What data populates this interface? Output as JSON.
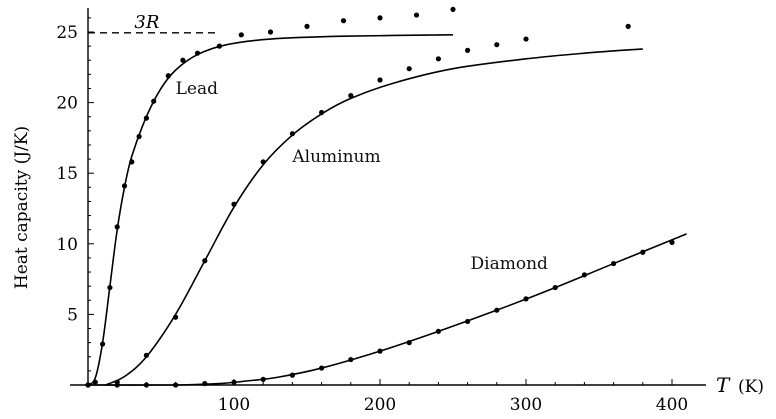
{
  "chart_data": {
    "type": "scatter",
    "title": "",
    "ylabel": "Heat capacity (J/K)",
    "xlabel_symbol": "T",
    "xlabel_unit": "(K)",
    "xlim": [
      -20,
      420
    ],
    "ylim": [
      0,
      27
    ],
    "x_ticks": [
      {
        "value": 100,
        "label": "100"
      },
      {
        "value": 200,
        "label": "200"
      },
      {
        "value": 300,
        "label": "300"
      },
      {
        "value": 400,
        "label": "400"
      }
    ],
    "y_ticks": [
      {
        "value": 5,
        "label": "5"
      },
      {
        "value": 10,
        "label": "10"
      },
      {
        "value": 15,
        "label": "15"
      },
      {
        "value": 20,
        "label": "20"
      },
      {
        "value": 25,
        "label": "25"
      }
    ],
    "reference_line": {
      "label": "3R",
      "y": 24.94,
      "x": [
        -10,
        90
      ]
    },
    "series": [
      {
        "name": "Lead",
        "label_position": {
          "x": 60,
          "y": 20.6
        },
        "curve_x_max": 250,
        "points": [
          {
            "x": 0,
            "y": 0
          },
          {
            "x": 5,
            "y": 0.2
          },
          {
            "x": 10,
            "y": 2.9
          },
          {
            "x": 15,
            "y": 6.9
          },
          {
            "x": 20,
            "y": 11.2
          },
          {
            "x": 25,
            "y": 14.1
          },
          {
            "x": 30,
            "y": 15.8
          },
          {
            "x": 35,
            "y": 17.6
          },
          {
            "x": 40,
            "y": 18.9
          },
          {
            "x": 45,
            "y": 20.1
          },
          {
            "x": 55,
            "y": 21.9
          },
          {
            "x": 65,
            "y": 23.0
          },
          {
            "x": 75,
            "y": 23.5
          },
          {
            "x": 90,
            "y": 24.0
          },
          {
            "x": 105,
            "y": 24.8
          },
          {
            "x": 125,
            "y": 25.0
          },
          {
            "x": 150,
            "y": 25.4
          },
          {
            "x": 175,
            "y": 25.8
          },
          {
            "x": 200,
            "y": 26.0
          },
          {
            "x": 225,
            "y": 26.2
          },
          {
            "x": 250,
            "y": 26.6
          },
          {
            "x": 370,
            "y": 25.4
          }
        ]
      },
      {
        "name": "Aluminum",
        "label_position": {
          "x": 140,
          "y": 15.8
        },
        "curve_x_max": 380,
        "points": [
          {
            "x": 20,
            "y": 0.2
          },
          {
            "x": 40,
            "y": 2.1
          },
          {
            "x": 60,
            "y": 4.8
          },
          {
            "x": 80,
            "y": 8.8
          },
          {
            "x": 100,
            "y": 12.8
          },
          {
            "x": 120,
            "y": 15.8
          },
          {
            "x": 140,
            "y": 17.8
          },
          {
            "x": 160,
            "y": 19.3
          },
          {
            "x": 180,
            "y": 20.5
          },
          {
            "x": 200,
            "y": 21.6
          },
          {
            "x": 220,
            "y": 22.4
          },
          {
            "x": 240,
            "y": 23.1
          },
          {
            "x": 260,
            "y": 23.7
          },
          {
            "x": 280,
            "y": 24.1
          },
          {
            "x": 300,
            "y": 24.5
          }
        ]
      },
      {
        "name": "Diamond",
        "label_position": {
          "x": 262,
          "y": 8.2
        },
        "curve_x_max": 410,
        "points": [
          {
            "x": 0,
            "y": 0
          },
          {
            "x": 20,
            "y": 0
          },
          {
            "x": 40,
            "y": 0
          },
          {
            "x": 60,
            "y": 0
          },
          {
            "x": 80,
            "y": 0.1
          },
          {
            "x": 100,
            "y": 0.2
          },
          {
            "x": 120,
            "y": 0.4
          },
          {
            "x": 140,
            "y": 0.7
          },
          {
            "x": 160,
            "y": 1.2
          },
          {
            "x": 180,
            "y": 1.8
          },
          {
            "x": 200,
            "y": 2.4
          },
          {
            "x": 220,
            "y": 3.0
          },
          {
            "x": 240,
            "y": 3.8
          },
          {
            "x": 260,
            "y": 4.5
          },
          {
            "x": 280,
            "y": 5.3
          },
          {
            "x": 300,
            "y": 6.1
          },
          {
            "x": 320,
            "y": 6.9
          },
          {
            "x": 340,
            "y": 7.8
          },
          {
            "x": 360,
            "y": 8.6
          },
          {
            "x": 380,
            "y": 9.4
          },
          {
            "x": 400,
            "y": 10.1
          }
        ]
      }
    ],
    "grid": false,
    "legend": "none"
  }
}
